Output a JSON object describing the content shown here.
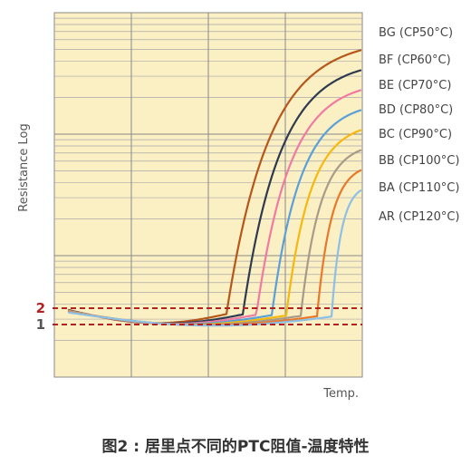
{
  "caption": "图2 : 居里点不同的PTC阻值-温度特性",
  "chart_data": {
    "type": "line",
    "title": "",
    "xlabel": "Temp.",
    "ylabel": "Resistance Log",
    "x_scale": "linear",
    "y_scale": "log",
    "grid": true,
    "plot_background": "#FBEFC4",
    "legend_position": "right",
    "reference_lines": [
      {
        "label": "2",
        "color": "#B22222"
      },
      {
        "label": "1",
        "color": "#B22222"
      }
    ],
    "series": [
      {
        "name": "BG (CP50°C)",
        "color": "#B5561A",
        "curie_point": 50
      },
      {
        "name": "BF (CP60°C)",
        "color": "#2E3A4E",
        "curie_point": 60
      },
      {
        "name": "BE (CP70°C)",
        "color": "#F07AA2",
        "curie_point": 70
      },
      {
        "name": "BD (CP80°C)",
        "color": "#5AA0D8",
        "curie_point": 80
      },
      {
        "name": "BC (CP90°C)",
        "color": "#F5B80E",
        "curie_point": 90
      },
      {
        "name": "BB (CP100°C)",
        "color": "#A99A88",
        "curie_point": 100
      },
      {
        "name": "BA (CP110°C)",
        "color": "#E8782A",
        "curie_point": 110
      },
      {
        "name": "AR (CP120°C)",
        "color": "#8CC0E6",
        "curie_point": 120
      }
    ]
  }
}
